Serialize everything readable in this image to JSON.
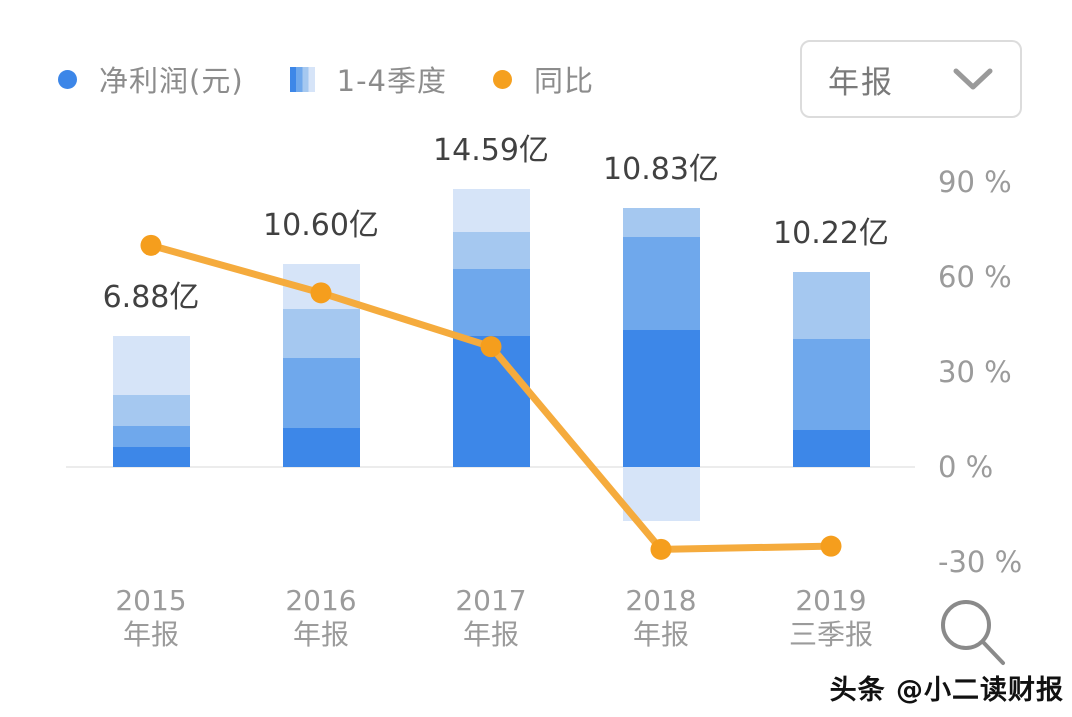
{
  "legend": {
    "items": [
      {
        "label": "净利润(元)",
        "marker": "dot",
        "color": "#3c86e8"
      },
      {
        "label": "1-4季度",
        "marker": "gradient-square",
        "colors": [
          "#3d87e8",
          "#6fa8ec",
          "#a5c8f0",
          "#d6e4f8"
        ]
      },
      {
        "label": "同比",
        "marker": "dot",
        "color": "#f5a01f"
      }
    ]
  },
  "period_dropdown": {
    "value": "年报"
  },
  "watermark": "头条 @小二读财报",
  "chart_data": {
    "type": "bar",
    "subtype": "stacked-bar with overlaid line (combo)",
    "title": "",
    "categories": [
      {
        "line1": "2015",
        "line2": "年报"
      },
      {
        "line1": "2016",
        "line2": "年报"
      },
      {
        "line1": "2017",
        "line2": "年报"
      },
      {
        "line1": "2018",
        "line2": "年报"
      },
      {
        "line1": "2019",
        "line2": "三季报"
      }
    ],
    "bar_series_name": "净利润(元)",
    "stack_legend_name": "1-4季度",
    "bar_total_labels": [
      "6.88亿",
      "10.60亿",
      "14.59亿",
      "10.83亿",
      "10.22亿"
    ],
    "bar_totals_yi": [
      6.88,
      10.6,
      14.59,
      10.83,
      10.22
    ],
    "quarter_stacks_yi_est": [
      [
        1.05,
        1.1,
        1.62,
        3.08
      ],
      [
        2.04,
        3.66,
        2.56,
        2.35
      ],
      [
        6.85,
        3.5,
        1.93,
        2.3
      ],
      [
        7.16,
        4.86,
        1.52,
        -2.82
      ],
      [
        1.93,
        4.76,
        3.5
      ]
    ],
    "quarter_colors": [
      "#3d87e8",
      "#6fa8ec",
      "#a5c8f0",
      "#d6e4f8"
    ],
    "line_series": {
      "name": "同比",
      "values_pct_est": [
        70,
        55,
        38,
        -26,
        -25
      ],
      "color": "#f5ab3d",
      "point_color": "#f59e1d"
    },
    "y_axis_right": {
      "ticks": [
        "90 %",
        "60 %",
        "30 %",
        "0 %",
        "-30 %"
      ],
      "tick_values_pct": [
        90,
        60,
        30,
        0,
        -30
      ],
      "range_pct": [
        -45,
        105
      ]
    },
    "grid": "zero-line-only",
    "legend_position": "top-left"
  }
}
